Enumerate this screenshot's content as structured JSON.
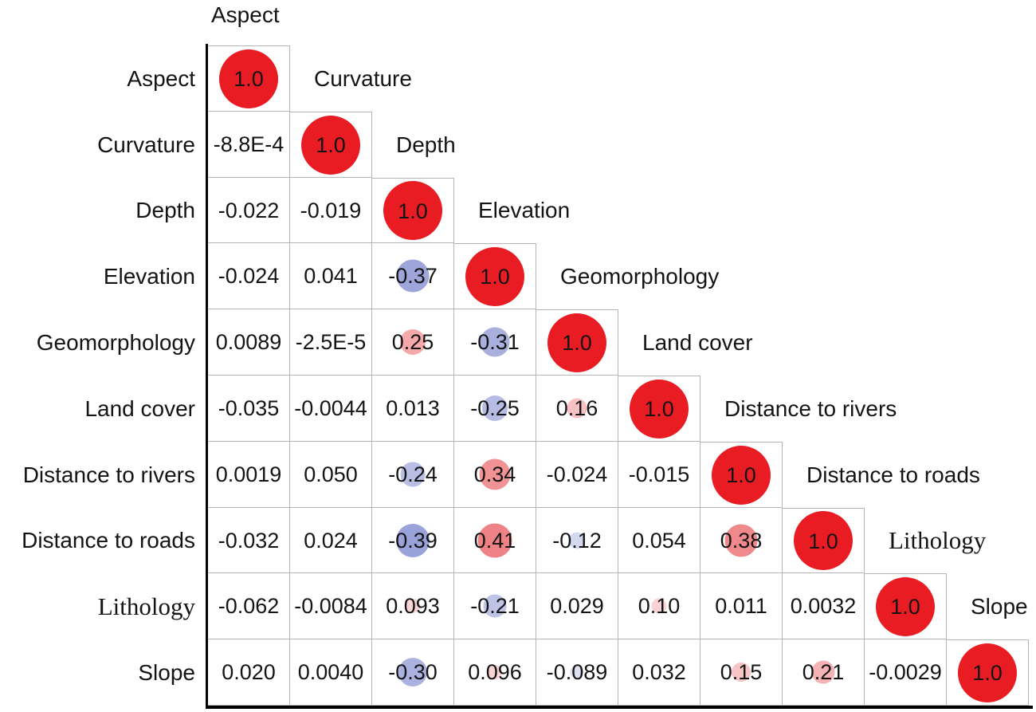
{
  "chart_data": {
    "type": "heatmap",
    "subtype": "correlation-matrix-lower-triangle",
    "variables": [
      "Aspect",
      "Curvature",
      "Depth",
      "Elevation",
      "Geomorphology",
      "Land cover",
      "Distance to rivers",
      "Distance to roads",
      "Lithology",
      "Slope"
    ],
    "diagonal_label": "1.0",
    "rows": [
      {
        "label": "Aspect",
        "values": []
      },
      {
        "label": "Curvature",
        "values": [
          "-8.8E-4"
        ]
      },
      {
        "label": "Depth",
        "values": [
          "-0.022",
          "-0.019"
        ]
      },
      {
        "label": "Elevation",
        "values": [
          "-0.024",
          "0.041",
          "-0.37"
        ]
      },
      {
        "label": "Geomorphology",
        "values": [
          "0.0089",
          "-2.5E-5",
          "0.25",
          "-0.31"
        ]
      },
      {
        "label": "Land cover",
        "values": [
          "-0.035",
          "-0.0044",
          "0.013",
          "-0.25",
          "0.16"
        ]
      },
      {
        "label": "Distance to rivers",
        "values": [
          "0.0019",
          "0.050",
          "-0.24",
          "0.34",
          "-0.024",
          "-0.015"
        ]
      },
      {
        "label": "Distance to roads",
        "values": [
          "-0.032",
          "0.024",
          "-0.39",
          "0.41",
          "-0.12",
          "0.054",
          "0.38"
        ]
      },
      {
        "label": "Lithology",
        "values": [
          "-0.062",
          "-0.0084",
          "0.093",
          "-0.21",
          "0.029",
          "0.10",
          "0.011",
          "0.0032"
        ]
      },
      {
        "label": "Slope",
        "values": [
          "0.020",
          "0.0040",
          "-0.30",
          "0.096",
          "-0.089",
          "0.032",
          "0.15",
          "0.21",
          "-0.0029"
        ]
      }
    ],
    "serif_labels": [
      "Lithology"
    ],
    "colors": {
      "positive_circle": "#e32126",
      "negative_circle": "#4353b8",
      "diagonal_circle": "#e81c22",
      "grid_line": "#b5b5b5",
      "axis_line": "#000000",
      "text": "#141414"
    },
    "legend_position": "none",
    "xlabel": "",
    "ylabel": ""
  }
}
